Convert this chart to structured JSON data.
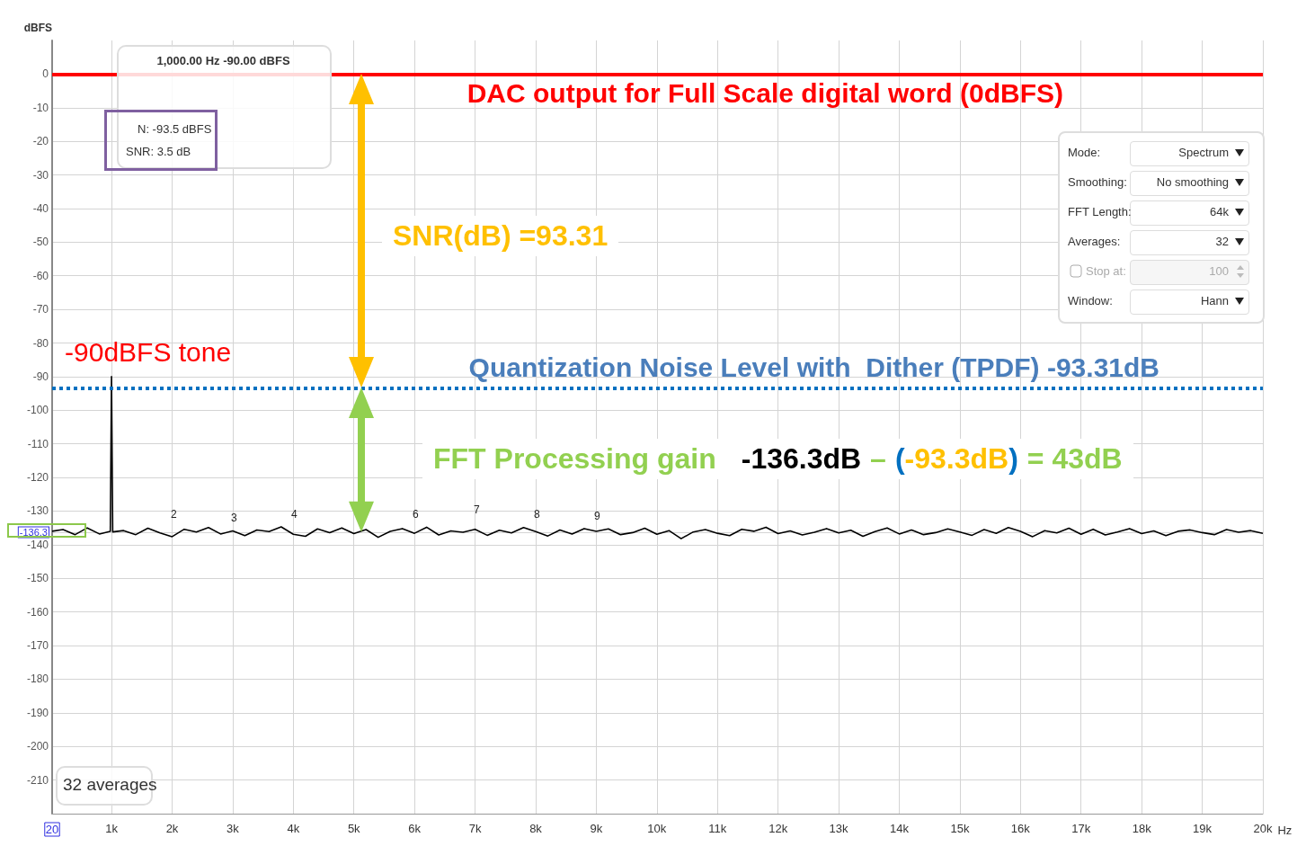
{
  "chart_data": {
    "type": "line",
    "ylabel": "dBFS",
    "x": [
      20,
      200,
      400,
      600,
      800,
      980,
      1000,
      1020,
      1200,
      1400,
      1600,
      1800,
      2000,
      2200,
      2400,
      2600,
      2800,
      3000,
      3200,
      3400,
      3600,
      3800,
      4000,
      4200,
      4400,
      4600,
      4800,
      5000,
      5200,
      5400,
      5600,
      5800,
      6000,
      6200,
      6400,
      6600,
      6800,
      7000,
      7200,
      7400,
      7600,
      7800,
      8000,
      8200,
      8400,
      8600,
      8800,
      9000,
      9200,
      9400,
      9600,
      9800,
      10000,
      10200,
      10400,
      10600,
      10800,
      11000,
      11200,
      11400,
      11600,
      11800,
      12000,
      12200,
      12400,
      12600,
      12800,
      13000,
      13200,
      13400,
      13600,
      13800,
      14000,
      14200,
      14400,
      14600,
      14800,
      15000,
      15200,
      15400,
      15600,
      15800,
      16000,
      16200,
      16400,
      16600,
      16800,
      17000,
      17200,
      17400,
      17600,
      17800,
      18000,
      18200,
      18400,
      18600,
      18800,
      19000,
      19200,
      19400,
      19600,
      19800,
      20000
    ],
    "series": [
      {
        "color": "#000000",
        "values": [
          -136,
          -135.5,
          -137,
          -135,
          -136.8,
          -136,
          -90,
          -136.2,
          -135.8,
          -137.0,
          -135.1,
          -136.5,
          -137.6,
          -135.4,
          -136.2,
          -134.9,
          -136.8,
          -135.9,
          -137.3,
          -135.6,
          -136.1,
          -134.7,
          -136.9,
          -137.5,
          -135.3,
          -136.4,
          -135.0,
          -136.7,
          -135.5,
          -137.8,
          -136.0,
          -135.2,
          -136.6,
          -134.8,
          -137.1,
          -135.9,
          -136.3,
          -135.4,
          -137.2,
          -135.7,
          -136.5,
          -134.9,
          -136.1,
          -137.4,
          -135.6,
          -136.8,
          -135.2,
          -136.0,
          -135.3,
          -137.0,
          -136.4,
          -135.1,
          -136.9,
          -135.8,
          -138.2,
          -136.2,
          -135.5,
          -136.6,
          -137.3,
          -135.4,
          -136.0,
          -134.8,
          -136.7,
          -135.9,
          -137.1,
          -136.3,
          -135.2,
          -136.5,
          -135.7,
          -137.5,
          -136.1,
          -135.0,
          -136.8,
          -135.6,
          -137.0,
          -136.4,
          -135.3,
          -136.2,
          -137.2,
          -135.5,
          -136.6,
          -134.9,
          -136.0,
          -137.6,
          -135.8,
          -136.5,
          -135.1,
          -136.9,
          -135.4,
          -137.1,
          -136.2,
          -135.2,
          -136.7,
          -135.9,
          -137.3,
          -136.0,
          -135.6,
          -136.4,
          -137.0,
          -135.5,
          -136.3,
          -135.8,
          -136.6
        ]
      }
    ],
    "xlim": [
      20,
      20000
    ],
    "xticks": [
      20,
      {
        "value": 1000,
        "label": "1k"
      },
      {
        "value": 2000,
        "label": "2k"
      },
      {
        "value": 3000,
        "label": "3k"
      },
      {
        "value": 4000,
        "label": "4k"
      },
      {
        "value": 5000,
        "label": "5k"
      },
      {
        "value": 6000,
        "label": "6k"
      },
      {
        "value": 7000,
        "label": "7k"
      },
      {
        "value": 8000,
        "label": "8k"
      },
      {
        "value": 9000,
        "label": "9k"
      },
      {
        "value": 10000,
        "label": "10k"
      },
      {
        "value": 11000,
        "label": "11k"
      },
      {
        "value": 12000,
        "label": "12k"
      },
      {
        "value": 13000,
        "label": "13k"
      },
      {
        "value": 14000,
        "label": "14k"
      },
      {
        "value": 15000,
        "label": "15k"
      },
      {
        "value": 16000,
        "label": "16k"
      },
      {
        "value": 17000,
        "label": "17k"
      },
      {
        "value": 18000,
        "label": "18k"
      },
      {
        "value": 19000,
        "label": "19k"
      },
      {
        "value": 20000,
        "label": "20k"
      }
    ],
    "xlabel": "Hz",
    "ylim": [
      -220,
      10
    ],
    "yticks": [
      0,
      -10,
      -20,
      -30,
      -40,
      -50,
      -60,
      -70,
      -80,
      -90,
      -100,
      -110,
      -120,
      -130,
      -140,
      -150,
      -160,
      -170,
      -180,
      -190,
      -200,
      -210,
      -136.3
    ],
    "grid": true,
    "marker": "none",
    "line_style": "solid",
    "ref_lines": [
      {
        "axis": "y",
        "value": 0,
        "label": "DAC output for Full Scale digital word (0dBFS)",
        "color": "#ff0000",
        "line_style": "solid"
      },
      {
        "axis": "y",
        "value": -93.31,
        "label": "Quantization Noise Level with  Dither (TPDF) -93.31dB",
        "color": "#0070c0",
        "line_style": "dotted"
      }
    ],
    "annotations": [
      "1,000.00 Hz  -90.00 dBFS",
      "N: -93.5 dBFS",
      "SNR: 3.5 dB",
      "SNR(dB) =93.31",
      {
        "text": "-90dBFS tone",
        "x": 1000,
        "y": -90
      },
      "FFT Processing gain",
      "-136.3dB",
      "–",
      "(",
      "-93.3dB",
      ")",
      "= 43dB",
      "2",
      "3",
      "4",
      "6",
      "7",
      "8",
      "9",
      "32 averages",
      "Mode:",
      "Spectrum",
      "Smoothing:",
      "No smoothing",
      "FFT Length:",
      "64k",
      "Averages:",
      "32",
      "Stop at:",
      "100",
      "Window:",
      "Hann"
    ]
  }
}
